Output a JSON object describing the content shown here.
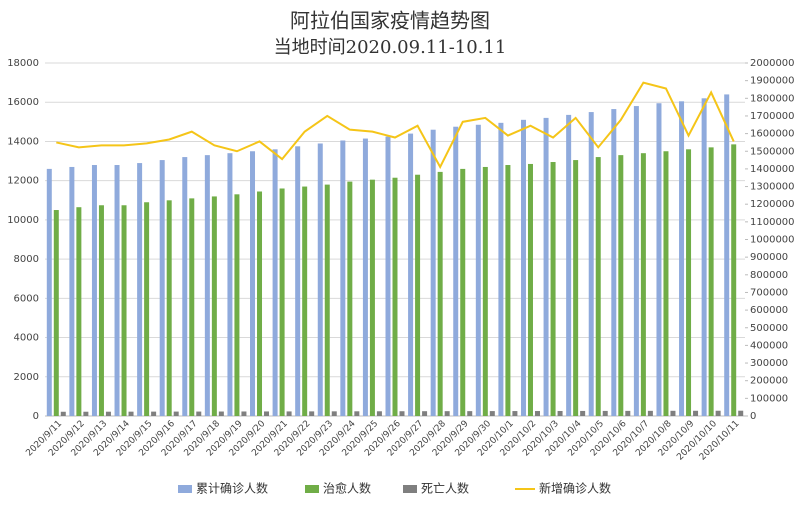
{
  "chart_data": {
    "type": "bar_line",
    "title": "阿拉伯国家疫情趋势图",
    "subtitle": "当地时间2020.09.11-10.11",
    "categories": [
      "2020/9/11",
      "2020/9/12",
      "2020/9/13",
      "2020/9/14",
      "2020/9/15",
      "2020/9/16",
      "2020/9/17",
      "2020/9/18",
      "2020/9/19",
      "2020/9/20",
      "2020/9/21",
      "2020/9/22",
      "2020/9/23",
      "2020/9/24",
      "2020/9/25",
      "2020/9/26",
      "2020/9/27",
      "2020/9/28",
      "2020/9/29",
      "2020/9/30",
      "2020/10/1",
      "2020/10/2",
      "2020/10/3",
      "2020/10/4",
      "2020/10/5",
      "2020/10/6",
      "2020/10/7",
      "2020/10/8",
      "2020/10/9",
      "2020/10/10",
      "2020/10/11"
    ],
    "series": [
      {
        "name": "累计确诊人数",
        "type": "bar",
        "axis": "y2",
        "color": "#8faadc",
        "values": [
          1400000,
          1411000,
          1422000,
          1422000,
          1433000,
          1450000,
          1467000,
          1478000,
          1489000,
          1500000,
          1511000,
          1528000,
          1544000,
          1561000,
          1572000,
          1583000,
          1600000,
          1622000,
          1639000,
          1650000,
          1661000,
          1678000,
          1689000,
          1706000,
          1722000,
          1739000,
          1756000,
          1772000,
          1783000,
          1800000,
          1822000
        ]
      },
      {
        "name": "治愈人数",
        "type": "bar",
        "axis": "y2",
        "color": "#70ad47",
        "values": [
          1167000,
          1183000,
          1194000,
          1194000,
          1211000,
          1222000,
          1233000,
          1244000,
          1256000,
          1272000,
          1289000,
          1300000,
          1311000,
          1328000,
          1339000,
          1350000,
          1367000,
          1383000,
          1400000,
          1411000,
          1422000,
          1428000,
          1439000,
          1450000,
          1467000,
          1478000,
          1489000,
          1500000,
          1511000,
          1522000,
          1539000
        ]
      },
      {
        "name": "死亡人数",
        "type": "bar",
        "axis": "y2",
        "color": "#7f7f7f",
        "values": [
          24000,
          24200,
          24400,
          24600,
          24800,
          25000,
          25200,
          25400,
          25600,
          25800,
          26000,
          26200,
          26400,
          26600,
          26800,
          27000,
          27200,
          27400,
          27600,
          27800,
          28000,
          28200,
          28400,
          28600,
          28800,
          29000,
          29200,
          29400,
          29600,
          29800,
          30000
        ]
      },
      {
        "name": "新增确诊人数",
        "type": "line",
        "axis": "y",
        "color": "#f5c518",
        "values": [
          13950,
          13700,
          13800,
          13800,
          13900,
          14100,
          14500,
          13800,
          13500,
          14000,
          13100,
          14500,
          15300,
          14600,
          14500,
          14200,
          14800,
          12700,
          15000,
          15200,
          14300,
          14800,
          14200,
          15200,
          13700,
          15100,
          17000,
          16700,
          14300,
          16500,
          14000
        ]
      }
    ],
    "ylim": [
      0,
      18000
    ],
    "yticks": [
      0,
      2000,
      4000,
      6000,
      8000,
      10000,
      12000,
      14000,
      16000,
      18000
    ],
    "y2lim": [
      0,
      2000000
    ],
    "y2ticks": [
      0,
      100000,
      200000,
      300000,
      400000,
      500000,
      600000,
      700000,
      800000,
      900000,
      1000000,
      1100000,
      1200000,
      1300000,
      1400000,
      1500000,
      1600000,
      1700000,
      1800000,
      1900000,
      2000000
    ],
    "grid": true
  }
}
